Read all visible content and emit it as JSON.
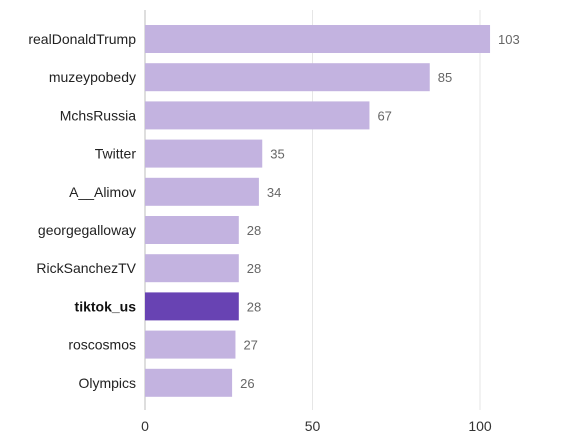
{
  "chart_data": {
    "type": "bar",
    "orientation": "horizontal",
    "categories": [
      "realDonaldTrump",
      "muzeypobedy",
      "MchsRussia",
      "Twitter",
      "A__Alimov",
      "georgegalloway",
      "RickSanchezTV",
      "tiktok_us",
      "roscosmos",
      "Olympics"
    ],
    "values": [
      103,
      85,
      67,
      35,
      34,
      28,
      28,
      28,
      27,
      26
    ],
    "highlight": "tiktok_us",
    "xlim": [
      0,
      115
    ],
    "xticks": [
      0,
      50,
      100
    ],
    "grid": true,
    "title": "",
    "xlabel": "",
    "ylabel": ""
  },
  "colors": {
    "bar": "#c3b3e0",
    "bar_highlight": "#6843b3"
  }
}
